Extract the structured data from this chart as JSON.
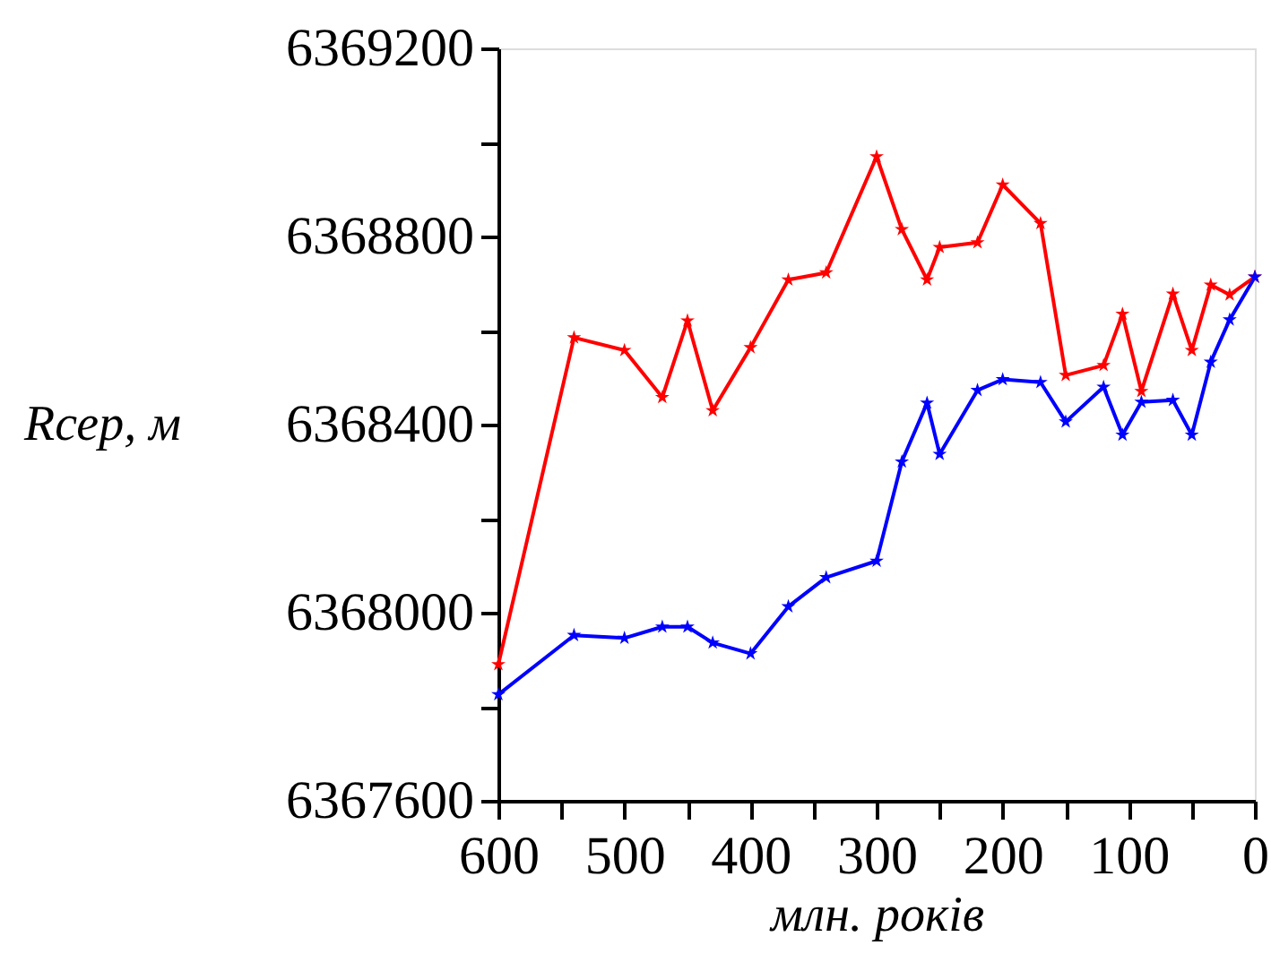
{
  "chart_data": {
    "type": "line",
    "xlabel": "млн. років",
    "ylabel": "Rсер, м",
    "x": [
      600,
      540,
      500,
      470,
      450,
      430,
      400,
      370,
      340,
      300,
      280,
      260,
      250,
      220,
      200,
      170,
      150,
      120,
      105,
      90,
      65,
      50,
      35,
      20,
      0
    ],
    "series": [
      {
        "color": "#ff0000",
        "values": [
          6367890,
          6368585,
          6368558,
          6368458,
          6368621,
          6368430,
          6368564,
          6368708,
          6368723,
          6368970,
          6368815,
          6368708,
          6368777,
          6368787,
          6368910,
          6368828,
          6368505,
          6368526,
          6368635,
          6368471,
          6368678,
          6368558,
          6368697,
          6368676,
          6368714
        ]
      },
      {
        "color": "#0000ff",
        "values": [
          6367826,
          6367952,
          6367946,
          6367970,
          6367970,
          6367936,
          6367913,
          6368013,
          6368075,
          6368110,
          6368321,
          6368446,
          6368337,
          6368473,
          6368496,
          6368490,
          6368406,
          6368480,
          6368378,
          6368448,
          6368452,
          6368378,
          6368533,
          6368623,
          6368714
        ]
      }
    ],
    "xlim": [
      600,
      0
    ],
    "xticks": [
      600,
      {
        "value": 550,
        "label": null
      },
      500,
      {
        "value": 450,
        "label": null
      },
      400,
      {
        "value": 350,
        "label": null
      },
      300,
      {
        "value": 250,
        "label": null
      },
      200,
      {
        "value": 150,
        "label": null
      },
      100,
      {
        "value": 50,
        "label": null
      },
      0
    ],
    "ylim": [
      6367600,
      6369200
    ],
    "yticks": [
      6367600,
      {
        "value": 6367800,
        "label": null
      },
      6368000,
      {
        "value": 6368200,
        "label": null
      },
      6368400,
      {
        "value": 6368600,
        "label": null
      },
      6368800,
      {
        "value": 6369000,
        "label": null
      },
      6369200
    ],
    "grid": false,
    "legend": false,
    "marker": "star",
    "line_style": "solid"
  }
}
